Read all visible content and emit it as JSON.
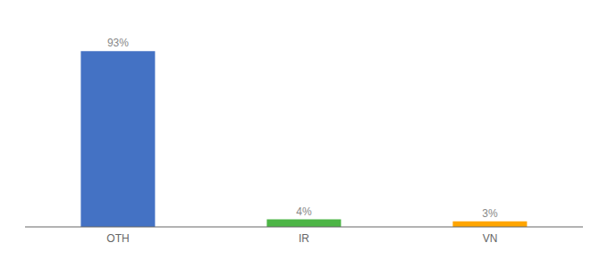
{
  "chart_data": {
    "type": "bar",
    "categories": [
      "OTH",
      "IR",
      "VN"
    ],
    "values": [
      93,
      4,
      3
    ],
    "value_labels": [
      "93%",
      "4%",
      "3%"
    ],
    "colors": [
      "#4472c4",
      "#4db546",
      "#ffa500"
    ],
    "ylim": [
      0,
      105
    ],
    "data_labels": true,
    "tick_labels": "x",
    "grid": false
  }
}
